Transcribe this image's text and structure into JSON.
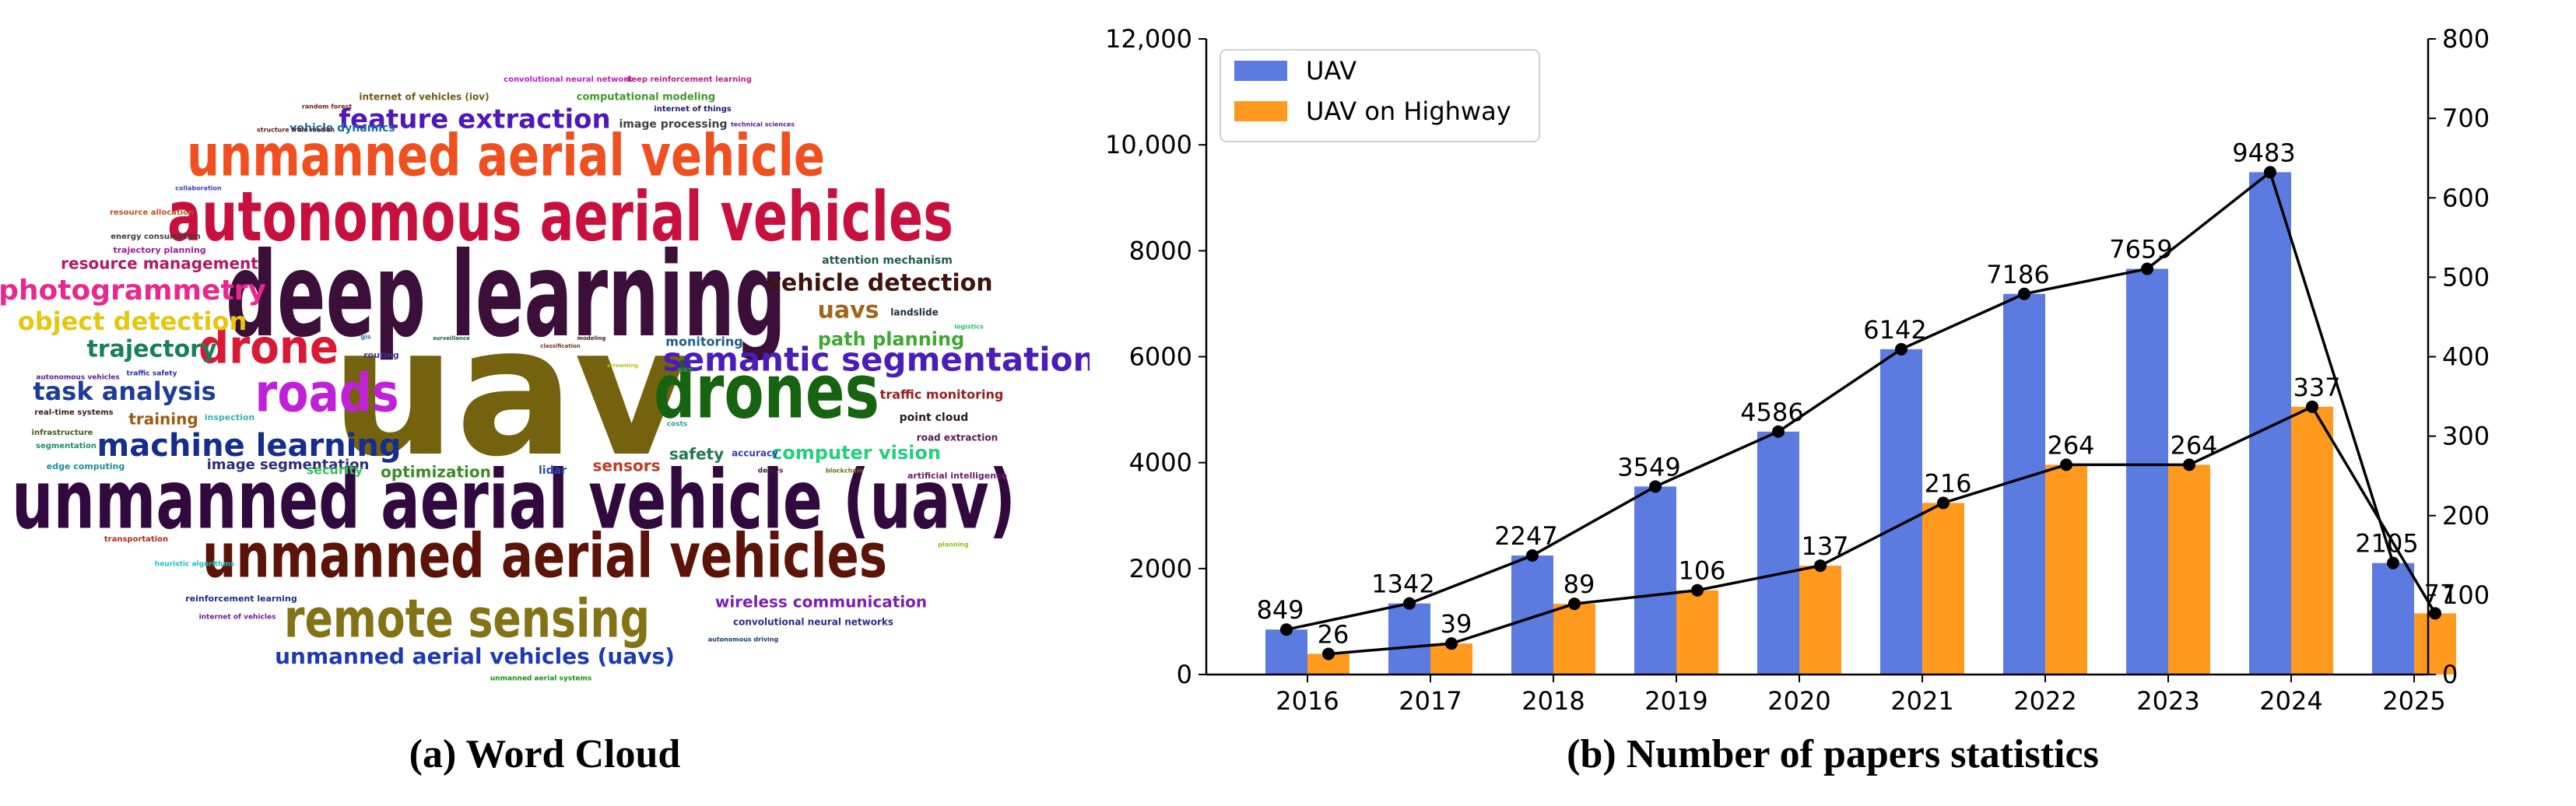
{
  "captions": {
    "word_cloud": "(a) Word Cloud",
    "paper_stats": "(b) Number of papers statistics"
  },
  "word_cloud": {
    "words": [
      {
        "text": "uav",
        "color": "#75620f",
        "size": 230
      },
      {
        "text": "deep learning",
        "color": "#3b0f3a",
        "size": 150
      },
      {
        "text": "unmanned aerial vehicle (uav)",
        "color": "#32093f",
        "size": 104
      },
      {
        "text": "autonomous aerial vehicles",
        "color": "#c8103e",
        "size": 88
      },
      {
        "text": "unmanned aerial vehicles",
        "color": "#5c1408",
        "size": 78
      },
      {
        "text": "unmanned aerial vehicle",
        "color": "#f0501f",
        "size": 74
      },
      {
        "text": "drones",
        "color": "#166410",
        "size": 96
      },
      {
        "text": "remote sensing",
        "color": "#847315",
        "size": 68
      },
      {
        "text": "roads",
        "color": "#c021d8",
        "size": 68
      },
      {
        "text": "drone",
        "color": "#d81a34",
        "size": 60
      },
      {
        "text": "semantic segmentation",
        "color": "#4a1cb8",
        "size": 42
      },
      {
        "text": "machine learning",
        "color": "#162d8c",
        "size": 40
      },
      {
        "text": "photogrammetry",
        "color": "#e8288c",
        "size": 36
      },
      {
        "text": "feature extraction",
        "color": "#4f18b8",
        "size": 34
      },
      {
        "text": "vehicle detection",
        "color": "#3d140c",
        "size": 30
      },
      {
        "text": "object detection",
        "color": "#e3c711",
        "size": 32
      },
      {
        "text": "task analysis",
        "color": "#1e3c9a",
        "size": 32
      },
      {
        "text": "trajectory",
        "color": "#17805a",
        "size": 30
      },
      {
        "text": "unmanned aerial vehicles (uavs)",
        "color": "#1d3ab0",
        "size": 28
      },
      {
        "text": "uavs",
        "color": "#a0641a",
        "size": 30
      },
      {
        "text": "path planning",
        "color": "#3da92e",
        "size": 24
      },
      {
        "text": "computer vision",
        "color": "#22d07d",
        "size": 24
      },
      {
        "text": "wireless communication",
        "color": "#7c1fb2",
        "size": 20
      },
      {
        "text": "resource management",
        "color": "#b01c62",
        "size": 20
      },
      {
        "text": "training",
        "color": "#9d5a12",
        "size": 20
      },
      {
        "text": "optimization",
        "color": "#3e8a27",
        "size": 20
      },
      {
        "text": "sensors",
        "color": "#c03b20",
        "size": 20
      },
      {
        "text": "safety",
        "color": "#1f7a50",
        "size": 20
      },
      {
        "text": "image segmentation",
        "color": "#2c2c78",
        "size": 18
      },
      {
        "text": "monitoring",
        "color": "#1f5c8c",
        "size": 16
      },
      {
        "text": "traffic monitoring",
        "color": "#9a1c1c",
        "size": 16
      },
      {
        "text": "attention mechanism",
        "color": "#1e5c4c",
        "size": 14
      },
      {
        "text": "convolutional neural networks",
        "color": "#2b2b8a",
        "size": 12
      },
      {
        "text": "image processing",
        "color": "#3e3e3e",
        "size": 14
      },
      {
        "text": "computational modeling",
        "color": "#3e9a28",
        "size": 13
      },
      {
        "text": "internet of vehicles (iov)",
        "color": "#6e5a10",
        "size": 12
      },
      {
        "text": "vehicle dynamics",
        "color": "#1e6ca0",
        "size": 14
      },
      {
        "text": "security",
        "color": "#38c060",
        "size": 16
      },
      {
        "text": "point cloud",
        "color": "#2c1c1c",
        "size": 14
      },
      {
        "text": "road extraction",
        "color": "#5a1c5a",
        "size": 12
      },
      {
        "text": "landslide",
        "color": "#1c2c3c",
        "size": 12
      },
      {
        "text": "lidar",
        "color": "#2c4cb0",
        "size": 14
      },
      {
        "text": "accuracy",
        "color": "#3c3cb0",
        "size": 12
      },
      {
        "text": "edge computing",
        "color": "#1c8c9c",
        "size": 11
      },
      {
        "text": "inspection",
        "color": "#3cb0b0",
        "size": 11
      },
      {
        "text": "routing",
        "color": "#3c3c8c",
        "size": 11
      },
      {
        "text": "convolutional neural network",
        "color": "#c01cc0",
        "size": 10
      },
      {
        "text": "deep reinforcement learning",
        "color": "#c01c80",
        "size": 10
      },
      {
        "text": "internet of things",
        "color": "#1c1c6c",
        "size": 10
      },
      {
        "text": "reinforcement learning",
        "color": "#1c2c8c",
        "size": 11
      },
      {
        "text": "artificial intelligence",
        "color": "#6c1c6c",
        "size": 11
      },
      {
        "text": "trajectory planning",
        "color": "#9c1c9c",
        "size": 11
      },
      {
        "text": "energy consumption",
        "color": "#3c3c3c",
        "size": 10
      },
      {
        "text": "resource allocation",
        "color": "#c05020",
        "size": 10
      },
      {
        "text": "real-time systems",
        "color": "#3c1c1c",
        "size": 10
      },
      {
        "text": "infrastructure",
        "color": "#3c5c1c",
        "size": 10
      },
      {
        "text": "segmentation",
        "color": "#1c8c6c",
        "size": 10
      },
      {
        "text": "traffic safety",
        "color": "#2c2cb0",
        "size": 9
      },
      {
        "text": "autonomous vehicles",
        "color": "#5c1c8c",
        "size": 9
      },
      {
        "text": "transportation",
        "color": "#b02c1c",
        "size": 10
      },
      {
        "text": "heuristic algorithms",
        "color": "#1cc0c0",
        "size": 9
      },
      {
        "text": "internet of vehicles",
        "color": "#6c1c9c",
        "size": 9
      },
      {
        "text": "unmanned aerial systems",
        "color": "#1c8c1c",
        "size": 9
      },
      {
        "text": "autonomous driving",
        "color": "#1c3c6c",
        "size": 8
      },
      {
        "text": "collaboration",
        "color": "#3c3cc0",
        "size": 8
      },
      {
        "text": "structure from motion",
        "color": "#5c1c1c",
        "size": 8
      },
      {
        "text": "random forest",
        "color": "#6c1c1c",
        "size": 8
      },
      {
        "text": "technical sciences",
        "color": "#5c1c9c",
        "size": 8
      },
      {
        "text": "costs",
        "color": "#2c9c9c",
        "size": 9
      },
      {
        "text": "delays",
        "color": "#3c1c3c",
        "size": 9
      },
      {
        "text": "blockchain",
        "color": "#6c6c1c",
        "size": 8
      },
      {
        "text": "gis",
        "color": "#2c6cb0",
        "size": 8
      },
      {
        "text": "uas",
        "color": "#3c8c3c",
        "size": 10
      },
      {
        "text": "logistics",
        "color": "#2cc06c",
        "size": 8
      },
      {
        "text": "planning",
        "color": "#8cc01c",
        "size": 8
      },
      {
        "text": "streaming",
        "color": "#c0c01c",
        "size": 7
      },
      {
        "text": "modeling",
        "color": "#3c1c1c",
        "size": 7
      },
      {
        "text": "surveillance",
        "color": "#1c5c3c",
        "size": 7
      },
      {
        "text": "classification",
        "color": "#6c3c1c",
        "size": 7
      }
    ]
  },
  "chart_data": {
    "type": "bar",
    "categories": [
      "2016",
      "2017",
      "2018",
      "2019",
      "2020",
      "2021",
      "2022",
      "2023",
      "2024",
      "2025"
    ],
    "series": [
      {
        "name": "UAV",
        "axis": "left",
        "color": "#5b7be0",
        "values": [
          849,
          1342,
          2247,
          3549,
          4586,
          6142,
          7186,
          7659,
          9483,
          2105
        ]
      },
      {
        "name": "UAV on Highway",
        "axis": "right",
        "color": "#ff9a1f",
        "values": [
          26,
          39,
          89,
          106,
          137,
          216,
          264,
          264,
          337,
          77
        ]
      }
    ],
    "overlay_lines": "each series is also drawn as a black line with dot markers at its bar tops",
    "y_left": {
      "ylim": [
        0,
        12000
      ],
      "ticks": [
        0,
        2000,
        4000,
        6000,
        8000,
        10000,
        12000
      ],
      "tick_labels": [
        "0",
        "2000",
        "4000",
        "6000",
        "8000",
        "10,000",
        "12,000"
      ]
    },
    "y_right": {
      "ylim": [
        0,
        800
      ],
      "ticks": [
        0,
        100,
        200,
        300,
        400,
        500,
        600,
        700,
        800
      ],
      "tick_labels": [
        "0",
        "100",
        "200",
        "300",
        "400",
        "500",
        "600",
        "700",
        "800"
      ]
    },
    "legend": {
      "placement": "top-left",
      "entries": [
        "UAV",
        "UAV on Highway"
      ]
    },
    "grid": false,
    "title": "",
    "xlabel": "",
    "ylabel": ""
  }
}
